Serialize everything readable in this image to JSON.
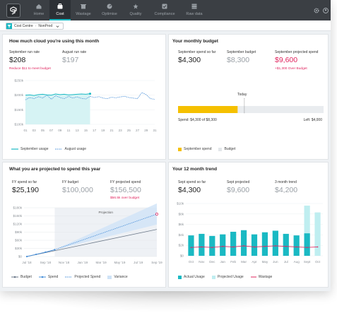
{
  "nav": {
    "items": [
      {
        "label": "Home",
        "icon": "home-icon"
      },
      {
        "label": "Cost",
        "icon": "cost-icon",
        "active": true
      },
      {
        "label": "Wastage",
        "icon": "wastage-icon"
      },
      {
        "label": "Optimise",
        "icon": "optimise-icon"
      },
      {
        "label": "Quality",
        "icon": "quality-icon"
      },
      {
        "label": "Compliance",
        "icon": "compliance-icon"
      },
      {
        "label": "Raw data",
        "icon": "raw-data-icon"
      }
    ]
  },
  "breadcrumb": {
    "first": "Cost Centre",
    "separator": "›",
    "second": "NonProd"
  },
  "colors": {
    "accent": "#1ab9c3",
    "budget_bar": "#f5c000",
    "alert": "#e0245e",
    "projection": "#4a90d9"
  },
  "cloud_usage": {
    "title": "How much cloud you're using this month",
    "run_rate_label": "September run rate",
    "run_rate_value": "$208",
    "run_rate_note": "Reduce $11 to meet budget",
    "august_label": "August run rate",
    "august_value": "$197",
    "legend_september": "September usage",
    "legend_august": "August usage"
  },
  "monthly_budget": {
    "title": "Your monthly budget",
    "spend_label": "September spend so far",
    "spend_value": "$4,300",
    "budget_label": "September budget",
    "budget_value": "$8,300",
    "projected_label": "September projected spend",
    "projected_value": "$9,600",
    "projected_note": "+$1,300 Over Budget",
    "today_label": "Today",
    "spend_caption": "Spend: $4,300 of $8,300",
    "left_caption": "Left: $4,000",
    "legend_spend": "September spend",
    "legend_budget": "Budget"
  },
  "projection": {
    "title": "What you are projected to spend this year",
    "fy_spend_label": "FY spend so far",
    "fy_spend_value": "$25,190",
    "fy_budget_label": "FY budget",
    "fy_budget_value": "$100,000",
    "fy_projected_label": "FY projected spend",
    "fy_projected_value": "$156,500",
    "fy_projected_note": "$56.5k over budget",
    "band_label": "Projection",
    "legend_budget": "Budget",
    "legend_spend": "Spend",
    "legend_projected": "Projected Spend",
    "legend_variance": "Variance"
  },
  "trend": {
    "title": "Your 12 month trend",
    "spent_label": "Sept spend so far",
    "spent_value": "$4,300",
    "projected_label": "Sept projected",
    "projected_value": "$9,600",
    "avg_label": "3 month trend",
    "avg_value": "$4,200",
    "legend_actual": "Actual Usage",
    "legend_projected": "Projected Usage",
    "legend_wastage": "Wastage"
  },
  "chart_data": [
    {
      "type": "line",
      "x_ticks": [
        "01",
        "03",
        "05",
        "07",
        "09",
        "11",
        "13",
        "15",
        "17",
        "19",
        "21",
        "23",
        "25",
        "27",
        "29",
        "31"
      ],
      "y_ticks": [
        "$250k",
        "$200k",
        "$150k",
        "$100k"
      ],
      "ylim": [
        100,
        250
      ],
      "series": [
        {
          "name": "September usage",
          "x": [
            1,
            2,
            3,
            4,
            5,
            6,
            7,
            8,
            9,
            10,
            11,
            12,
            13,
            14,
            15,
            16
          ],
          "values": [
            200,
            201,
            199,
            202,
            203,
            201,
            200,
            204,
            202,
            203,
            201,
            202,
            203,
            204,
            203,
            205
          ]
        },
        {
          "name": "August usage",
          "x": [
            1,
            2,
            3,
            4,
            5,
            6,
            7,
            8,
            9,
            10,
            11,
            12,
            13,
            14,
            15,
            16,
            17,
            18,
            19,
            20,
            21,
            22,
            23,
            24,
            25,
            26,
            27,
            28,
            29,
            30,
            31
          ],
          "values": [
            184,
            192,
            188,
            195,
            190,
            200,
            186,
            198,
            192,
            188,
            196,
            190,
            194,
            189,
            187,
            196,
            192,
            195,
            190,
            188,
            193,
            191,
            194,
            196,
            192,
            190,
            188,
            209,
            202,
            188,
            186
          ]
        }
      ]
    },
    {
      "type": "bar",
      "orientation": "horizontal",
      "spend": 4300,
      "budget": 8300,
      "today_fraction": 0.53
    },
    {
      "type": "line",
      "x_ticks": [
        "Jul '18",
        "Sep '18",
        "Nov '18",
        "Jan '19",
        "Mar '19",
        "May '19",
        "Jul '19",
        "Sep '19"
      ],
      "y_ticks": [
        "$180k",
        "$150k",
        "$120k",
        "$90k",
        "$60k",
        "$30k",
        "$0"
      ],
      "ylim": [
        0,
        180
      ],
      "series": [
        {
          "name": "Budget",
          "x": [
            0,
            14
          ],
          "values": [
            0,
            100
          ]
        },
        {
          "name": "Spend",
          "x": [
            0,
            1,
            2,
            3
          ],
          "values": [
            0,
            8,
            16,
            25.19
          ]
        },
        {
          "name": "Projected Spend",
          "x": [
            3,
            14
          ],
          "values": [
            25.19,
            156.5
          ]
        },
        {
          "name": "Variance",
          "x": [
            3,
            14
          ],
          "low": [
            25.19,
            118
          ],
          "high": [
            25.19,
            196
          ]
        }
      ]
    },
    {
      "type": "bar",
      "categories": [
        "Oct",
        "Nov",
        "Dec",
        "Jan",
        "Feb",
        "Mar",
        "Apr",
        "May",
        "Jun",
        "Jul",
        "Aug",
        "Sept",
        "Oct"
      ],
      "y_ticks": [
        "$10k",
        "$8k",
        "$6k",
        "$4k",
        "$2k",
        "$0"
      ],
      "ylim": [
        0,
        10
      ],
      "series": [
        {
          "name": "Actual Usage",
          "values": [
            3.9,
            4.2,
            3.8,
            4.1,
            4.6,
            4.9,
            4.1,
            4.5,
            4.8,
            4.2,
            3.9,
            4.3,
            0
          ]
        },
        {
          "name": "Projected Usage",
          "values": [
            0,
            0,
            0,
            0,
            0,
            0,
            0,
            0,
            0,
            0,
            0,
            9.6,
            8.3
          ]
        },
        {
          "name": "Wastage",
          "values": [
            1.6,
            1.7,
            1.6,
            1.8,
            1.7,
            1.9,
            1.7,
            1.8,
            1.9,
            1.8,
            1.7,
            1.6,
            1.7
          ]
        }
      ]
    }
  ]
}
